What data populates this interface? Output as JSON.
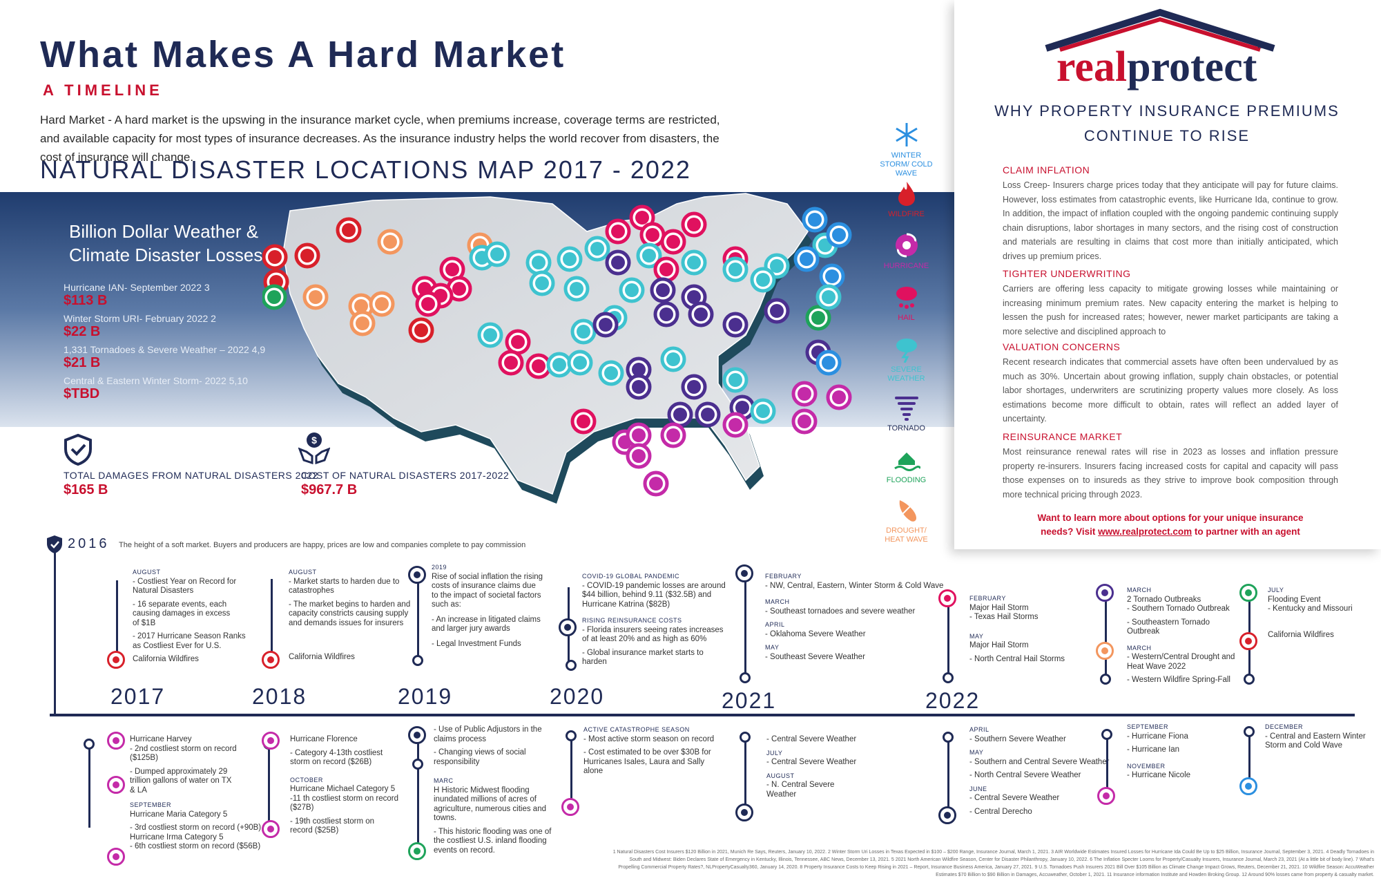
{
  "header": {
    "title": "What Makes A Hard Market",
    "subtitle": "A TIMELINE",
    "intro": "Hard Market - A hard market is the upswing in the insurance market cycle, when premiums increase, coverage terms are restricted, and available capacity for most types of insurance decreases. As the insurance industry helps the world recover from disasters, the cost of insurance will change.",
    "map_title": "NATURAL DISASTER LOCATIONS MAP 2017 - 2022"
  },
  "losses": {
    "title_line1": "Billion Dollar Weather &",
    "title_line2": "Climate Disaster Losses",
    "items": [
      {
        "label": "Hurricane IAN- September 2022 3",
        "value": "$113 B"
      },
      {
        "label": "Winter Storm URI- February 2022 2",
        "value": "$22 B"
      },
      {
        "label": "1,331 Tornadoes & Severe Weather – 2022 4,9",
        "value": "$21 B"
      },
      {
        "label": "Central & Eastern Winter Storm- 2022 5,10",
        "value": "$TBD"
      }
    ]
  },
  "stats": [
    {
      "label": "TOTAL DAMAGES FROM NATURAL DISASTERS 2022",
      "value": "$165 B",
      "icon": "shield-check-icon"
    },
    {
      "label": "COST OF NATURAL DISASTERS 2017-2022",
      "value": "$967.7 B",
      "icon": "money-hands-icon"
    }
  ],
  "legend": [
    {
      "label": "WINTER STORM/ COLD WAVE",
      "color": "#2b8fe0",
      "icon": "snowflake-icon"
    },
    {
      "label": "WILDFIRE",
      "color": "#d8202a",
      "icon": "fire-icon"
    },
    {
      "label": "HURRICANE",
      "color": "#c42aa8",
      "icon": "hurricane-icon"
    },
    {
      "label": "HAIL",
      "color": "#e0115f",
      "icon": "hail-icon"
    },
    {
      "label": "SEVERE WEATHER",
      "color": "#3ec3cf",
      "icon": "severe-weather-icon"
    },
    {
      "label": "TORNADO",
      "color": "#4b2f8f",
      "icon": "tornado-icon"
    },
    {
      "label": "FLOODING",
      "color": "#1ea35a",
      "icon": "flood-icon"
    },
    {
      "label": "DROUGHT/ HEAT WAVE",
      "color": "#f3965e",
      "icon": "drought-icon"
    }
  ],
  "panel": {
    "logo_real": "real",
    "logo_protect": "protect",
    "logo_tm": "™",
    "why_line1": "WHY PROPERTY INSURANCE PREMIUMS",
    "why_line2": "CONTINUE TO RISE",
    "sections": [
      {
        "heading": "CLAIM INFLATION",
        "body": "Loss Creep- Insurers charge prices today that they anticipate will pay for future claims. However, loss estimates from catastrophic events, like Hurricane Ida, continue to grow. In addition, the impact of inflation coupled with the ongoing pandemic continuing supply chain disruptions, labor shortages in many sectors, and the rising cost of construction and materials are resulting in claims that cost more than initially anticipated, which drives up premium prices."
      },
      {
        "heading": "TIGHTER UNDERWRITING",
        "body": "Carriers are offering less capacity to mitigate growing losses while maintaining or increasing minimum premium rates. New capacity entering the market is helping to lessen the push for increased rates; however, newer market participants are taking a more selective and disciplined approach to"
      },
      {
        "heading": "VALUATION CONCERNS",
        "body": "Recent research indicates that commercial assets have often been undervalued by as much as 30%. Uncertain about growing inflation, supply chain obstacles, or potential labor shortages, underwriters are scrutinizing property values more closely. As loss estimations become more difficult to obtain, rates will reflect an added layer of uncertainty."
      },
      {
        "heading": "REINSURANCE MARKET",
        "body": "Most reinsurance renewal rates will rise in 2023 as losses and inflation pressure property re-insurers. Insurers facing increased costs for capital and capacity will pass those expenses on to insureds as they strive to improve book composition through more technical pricing through 2023."
      }
    ],
    "cta_line1": "Want to learn more about options for your unique insurance",
    "cta_line2_a": "needs? Visit ",
    "cta_link": "www.realprotect.com",
    "cta_line2_b": " to partner with an agent"
  },
  "timeline": {
    "start_year": "2016",
    "start_text": "The height of a soft market. Buyers and producers are happy, prices are low and companies complete to pay commission",
    "years": [
      "2017",
      "2018",
      "2019",
      "2020",
      "2021",
      "2022"
    ],
    "top": {
      "y2017": {
        "month": "AUGUST",
        "lines": [
          "- Costliest Year on Record for",
          "Natural Disasters",
          "- 16 separate events, each",
          "causing damages in excess",
          "of $1B",
          "- 2017 Hurricane Season Ranks",
          "as Costliest Ever for U.S."
        ],
        "tag": "California Wildfires"
      },
      "y2018": {
        "month": "AUGUST",
        "lines": [
          "- Market starts to harden due to",
          "catastrophes",
          "- The market begins to harden and",
          "capacity constricts causing supply",
          "and demands issues for insurers"
        ],
        "tag": "California Wildfires"
      },
      "y2019": {
        "month": "2019",
        "lines": [
          "Rise of social inflation the rising",
          "costs of insurance claims due",
          "to the impact of societal factors",
          "such as:",
          "- An increase in litigated claims",
          "and larger jury awards",
          "- Legal Investment Funds"
        ]
      },
      "y2020": {
        "month": "COVID-19 GLOBAL PANDEMIC",
        "lines": [
          "- COVID-19 pandemic losses are around",
          "$44 billion, behind 9.11 ($32.5B) and",
          "Hurricane Katrina ($82B)"
        ],
        "month2": "RISING REINSURANCE COSTS",
        "lines2": [
          "- Florida insurers seeing rates increases",
          "of at least 20% and as high as 60%",
          "- Global insurance market starts to harden"
        ]
      },
      "y2021": {
        "m1": "FEBRUARY",
        "t1": "- NW, Central, Eastern, Winter Storm & Cold Wave",
        "m2": "MARCH",
        "t2": "- Southeast tornadoes and severe weather",
        "m3": "APRIL",
        "t3": "- Oklahoma Severe Weather",
        "m4": "MAY",
        "t4": "- Southeast Severe Weather"
      },
      "y2022a": {
        "m1": "FEBRUARY",
        "t1": "Major Hail Storm",
        "t1b": "- Texas Hail Storms",
        "m2": "MAY",
        "t2": "Major Hail Storm",
        "t2b": "- North Central Hail Storms"
      },
      "y2022b": {
        "m1": "MARCH",
        "t1": "2 Tornado Outbreaks",
        "t1b": "- Southern Tornado Outbreak",
        "t1c": "- Southeastern Tornado Outbreak",
        "m2": "MARCH",
        "t2": "- Western/Central Drought and",
        "t2b": "Heat Wave 2022",
        "t2c": "- Western Wildfire Spring-Fall"
      },
      "y2022c": {
        "m1": "JULY",
        "t1": "Flooding Event",
        "t1b": "- Kentucky and Missouri",
        "t2": "California Wildfires"
      }
    },
    "bottom": {
      "y2017": {
        "t1": "Hurricane Harvey",
        "t1a": "- 2nd costliest storm on record",
        "t1b": "($125B)",
        "t2": "- Dumped approximately 29",
        "t2a": "trillion gallons of water on TX",
        "t2b": "& LA",
        "m": "SEPTEMBER",
        "t3": "Hurricane Maria Category 5",
        "t3a": "- 3rd costliest storm on record (+90B)",
        "t3b": "Hurricane Irma Category 5",
        "t3c": "- 6th costliest storm on record ($56B)"
      },
      "y2018": {
        "t1": "Hurricane Florence",
        "t1a": "- Category 4-13th costliest",
        "t1b": "storm on record ($26B)",
        "m": "OCTOBER",
        "t2": "Hurricane Michael Category 5",
        "t2a": "-11 th costliest storm on record",
        "t2b": "($27B)",
        "t2c": "- 19th costliest storm on",
        "t2d": "record ($25B)"
      },
      "y2019": {
        "t1": "- Use of Public Adjustors in the",
        "t1a": "claims process",
        "t2": "- Changing views of social",
        "t2a": "responsibility",
        "m": "MARC",
        "t3": "H Historic Midwest flooding",
        "t3a": "inundated millions of acres of",
        "t3b": "agriculture, numerous cities and",
        "t3c": "towns.",
        "t4": "- This historic flooding was one of",
        "t4a": "the costliest U.S. inland flooding",
        "t4b": "events on record."
      },
      "y2020": {
        "m": "ACTIVE CATASTROPHE SEASON",
        "t1": "- Most active storm season on record",
        "t2": "- Cost estimated to be over $30B for",
        "t2a": "Hurricanes Isales, Laura and Sally",
        "t2b": "alone"
      },
      "y2021": {
        "t1": "- Central Severe Weather",
        "m1": "JULY",
        "t2": "- Central Severe Weather",
        "m2": "AUGUST",
        "t3": "- N. Central Severe",
        "t3a": "Weather"
      },
      "y2022a": {
        "m1": "APRIL",
        "t1": "- Southern Severe Weather",
        "m2": "MAY",
        "t2": "- Southern and Central Severe Weather",
        "t3": "- North Central Severe Weather",
        "m3": "JUNE",
        "t4": "- Central Severe Weather",
        "t5": "- Central Derecho"
      },
      "y2022b": {
        "m1": "SEPTEMBER",
        "t1": "- Hurricane Fiona",
        "t2": "- Hurricane Ian",
        "m2": "NOVEMBER",
        "t3": "- Hurricane Nicole"
      },
      "y2022c": {
        "m1": "DECEMBER",
        "t1": "- Central and Eastern Winter",
        "t1a": "Storm and Cold Wave"
      }
    }
  },
  "footnote": "1 Natural Disasters Cost Insurers $120 Billion in 2021, Munich Re Says, Reuters, January 10, 2022. 2 Winter Storm Uri Losses in Texas Expected in $100 – $200 Range, Insurance Journal, March 1, 2021. 3 AIR Worldwide Estimates Insured Losses for Hurricane Ida Could Be Up to $25 Billion, Insurance Journal, September 3, 2021. 4 Deadly Tornadoes in South and Midwest: Biden Declares State of Emergency in Kentucky, Illinois, Tennessee, ABC News, December 13, 2021. 5 2021 North American Wildfire Season, Center for Disaster Philanthropy, January 10, 2022. 6 The Inflation Specter Looms for Property/Casualty Insurers, Insurance Journal, March 23, 2021 (At a little bit of body line). 7 What's Propelling Commercial Property Rates?, NLPropertyCasualty360, January 14, 2020. 8 Property Insurance Costs to Keep Rising in 2021 – Report, Insurance Business America, January 27, 2021. 9 U.S. Tornadoes Push Insurers 2021 Bill Over $105 Billion as Climate Change Impact Grows, Reuters, December 21, 2021. 10 Wildfire Season: AccuWeather Estimates $70 Billion to $90 Billion in Damages, Accuweather, October 1, 2021. 11 Insurance information Institute and Howden Broking Group. 12 Around 90% losses came from property & casualty market."
}
